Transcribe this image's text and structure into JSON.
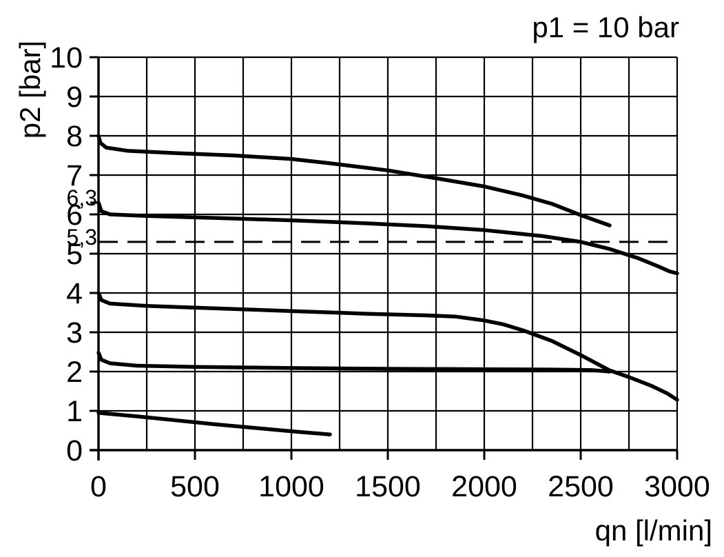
{
  "chart_data": {
    "type": "line",
    "title": "p1 = 10 bar",
    "xlabel": "qn [l/min]",
    "ylabel": "p2 [bar]",
    "xlim": [
      0,
      3000
    ],
    "ylim": [
      0,
      10
    ],
    "x_tick_labels": [
      0,
      500,
      1000,
      1500,
      2000,
      2500,
      3000
    ],
    "y_tick_labels": [
      0,
      1,
      2,
      3,
      4,
      5,
      6,
      7,
      8,
      9,
      10
    ],
    "x_grid_step": 250,
    "y_grid_step": 1,
    "grid": true,
    "legend": "none",
    "extra_y_ticks": [
      {
        "value": 6.3,
        "label": "6,3"
      }
    ],
    "reference_line": {
      "value": 5.3,
      "label": "5,3",
      "style": "dashed"
    },
    "series": [
      {
        "id": "setting-8-bar",
        "start_p2": 8.0,
        "points": [
          [
            0,
            8.0
          ],
          [
            10,
            7.82
          ],
          [
            40,
            7.7
          ],
          [
            150,
            7.62
          ],
          [
            400,
            7.56
          ],
          [
            700,
            7.5
          ],
          [
            1000,
            7.41
          ],
          [
            1200,
            7.3
          ],
          [
            1500,
            7.12
          ],
          [
            1750,
            6.92
          ],
          [
            2000,
            6.71
          ],
          [
            2200,
            6.48
          ],
          [
            2350,
            6.27
          ],
          [
            2500,
            5.98
          ],
          [
            2650,
            5.72
          ]
        ]
      },
      {
        "id": "setting-6.3-bar",
        "start_p2": 6.3,
        "points": [
          [
            0,
            6.3
          ],
          [
            15,
            6.08
          ],
          [
            60,
            6.0
          ],
          [
            250,
            5.96
          ],
          [
            600,
            5.91
          ],
          [
            1000,
            5.85
          ],
          [
            1400,
            5.77
          ],
          [
            1700,
            5.7
          ],
          [
            2000,
            5.6
          ],
          [
            2300,
            5.45
          ],
          [
            2500,
            5.3
          ],
          [
            2650,
            5.12
          ],
          [
            2800,
            4.88
          ],
          [
            2900,
            4.68
          ],
          [
            2960,
            4.55
          ],
          [
            3000,
            4.5
          ]
        ]
      },
      {
        "id": "setting-4-bar",
        "start_p2": 4.0,
        "points": [
          [
            0,
            4.0
          ],
          [
            15,
            3.82
          ],
          [
            60,
            3.73
          ],
          [
            250,
            3.67
          ],
          [
            600,
            3.61
          ],
          [
            1000,
            3.54
          ],
          [
            1400,
            3.47
          ],
          [
            1700,
            3.43
          ],
          [
            1850,
            3.4
          ],
          [
            2000,
            3.3
          ],
          [
            2100,
            3.2
          ],
          [
            2200,
            3.05
          ],
          [
            2350,
            2.78
          ],
          [
            2500,
            2.42
          ],
          [
            2650,
            2.03
          ],
          [
            2750,
            1.86
          ],
          [
            2870,
            1.63
          ],
          [
            2950,
            1.44
          ],
          [
            3000,
            1.28
          ]
        ]
      },
      {
        "id": "setting-2.5-bar",
        "start_p2": 2.5,
        "points": [
          [
            0,
            2.48
          ],
          [
            15,
            2.3
          ],
          [
            60,
            2.21
          ],
          [
            200,
            2.15
          ],
          [
            500,
            2.12
          ],
          [
            1000,
            2.09
          ],
          [
            1500,
            2.07
          ],
          [
            2000,
            2.06
          ],
          [
            2350,
            2.05
          ],
          [
            2550,
            2.04
          ],
          [
            2650,
            2.0
          ]
        ]
      },
      {
        "id": "setting-1-bar",
        "start_p2": 1.0,
        "points": [
          [
            0,
            0.95
          ],
          [
            200,
            0.86
          ],
          [
            400,
            0.76
          ],
          [
            600,
            0.66
          ],
          [
            800,
            0.57
          ],
          [
            1000,
            0.48
          ],
          [
            1200,
            0.4
          ]
        ]
      }
    ]
  },
  "colors": {
    "ink": "#000000",
    "background": "#ffffff"
  }
}
